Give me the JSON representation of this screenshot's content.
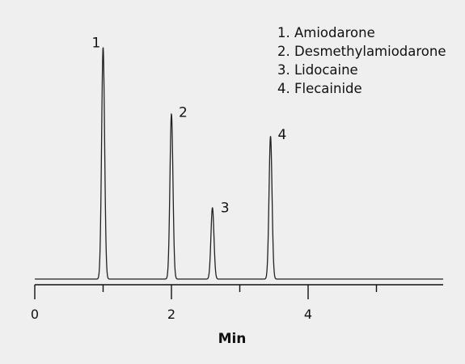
{
  "chart_data": {
    "type": "line",
    "title": "",
    "xlabel": "Min",
    "ylabel": "",
    "xlim": [
      0,
      6
    ],
    "x_ticks": [
      0,
      2,
      4
    ],
    "x_tick_labels": [
      "0",
      "2",
      "4"
    ],
    "minor_ticks": [
      1,
      3,
      5
    ],
    "grid": false,
    "legend": {
      "placement": "top-right",
      "entries": [
        "1. Amiodarone",
        "2. Desmethylamiodarone",
        "3. Lidocaine",
        "4. Flecainide"
      ]
    },
    "peaks": [
      {
        "label": "1",
        "time": 1.0,
        "height": 0.94
      },
      {
        "label": "2",
        "time": 2.0,
        "height": 0.67
      },
      {
        "label": "3",
        "time": 2.6,
        "height": 0.29
      },
      {
        "label": "4",
        "time": 3.45,
        "height": 0.58
      }
    ],
    "line_color": "#222222",
    "axis_color": "#111111",
    "background_color": "#efefef"
  }
}
